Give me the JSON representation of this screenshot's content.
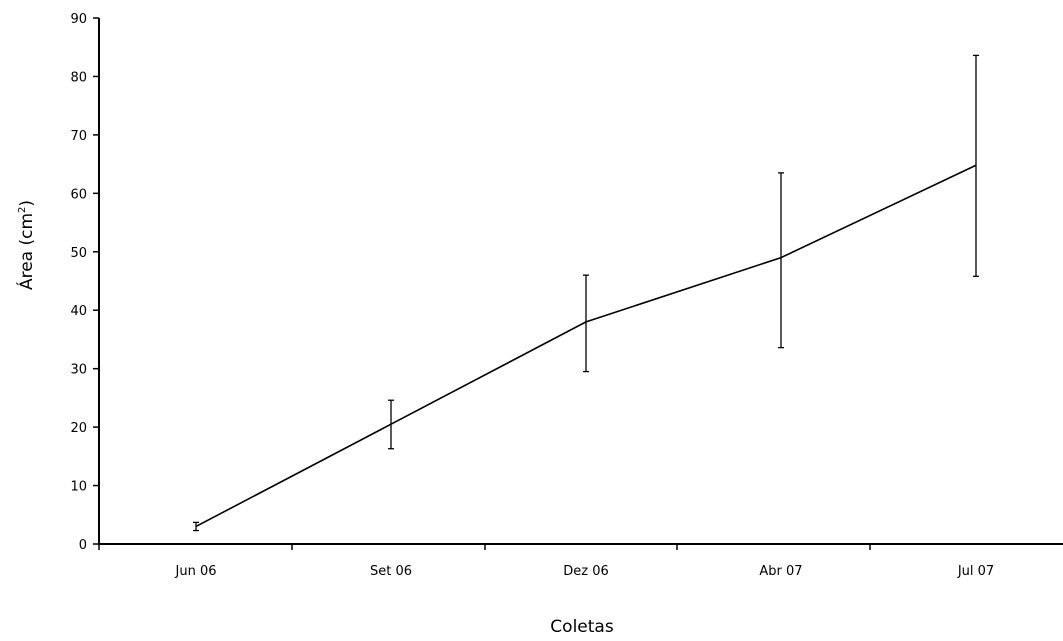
{
  "chart_data": {
    "type": "line",
    "title": "",
    "xlabel": "Coletas",
    "ylabel": {
      "main": "Área (cm",
      "superscript": "2",
      "close": ")"
    },
    "categories": [
      "Jun 06",
      "Set 06",
      "Dez 06",
      "Abr 07",
      "Jul 07"
    ],
    "series": [
      {
        "values": [
          3.0,
          20.5,
          38.0,
          49.0,
          64.8
        ],
        "error_low": [
          2.3,
          16.3,
          29.5,
          33.6,
          45.8
        ],
        "error_high": [
          3.7,
          24.6,
          46.0,
          63.5,
          83.6
        ]
      }
    ],
    "yticks": [
      0,
      10,
      20,
      30,
      40,
      50,
      60,
      70,
      80,
      90
    ],
    "ylim": [
      0,
      90
    ],
    "grid": false,
    "line_color": "#000000"
  }
}
